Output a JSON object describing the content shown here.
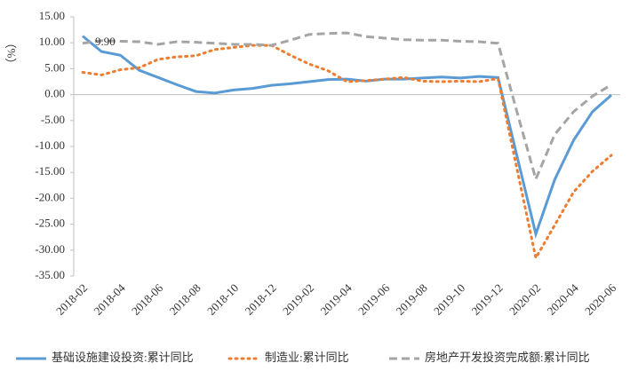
{
  "chart_data": {
    "type": "line",
    "y_label": "（%）",
    "annotation": "9.90",
    "categories": [
      "2018-02",
      null,
      "2018-04",
      null,
      "2018-06",
      null,
      "2018-08",
      null,
      "2018-10",
      null,
      "2018-12",
      null,
      "2019-02",
      null,
      "2019-04",
      null,
      "2019-06",
      null,
      "2019-08",
      null,
      "2019-10",
      null,
      "2019-12",
      null,
      "2020-02",
      null,
      "2020-04",
      null,
      "2020-06"
    ],
    "series": [
      {
        "name": "基础设施建设投资:累计同比",
        "color": "#5b9bd5",
        "dash": "solid",
        "values": [
          11.3,
          8.3,
          7.6,
          4.7,
          3.3,
          1.9,
          0.6,
          0.3,
          0.9,
          1.2,
          1.8,
          2.1,
          2.5,
          2.9,
          3.0,
          2.6,
          3.0,
          3.0,
          3.2,
          3.4,
          3.2,
          3.5,
          3.3,
          -11.8,
          -26.9,
          -16.4,
          -8.8,
          -3.3,
          -0.1
        ]
      },
      {
        "name": "制造业:累计同比",
        "color": "#ed7d31",
        "dash": "dot",
        "values": [
          4.3,
          3.8,
          4.8,
          5.2,
          6.8,
          7.3,
          7.5,
          8.7,
          9.1,
          9.5,
          9.5,
          7.6,
          5.9,
          4.6,
          2.5,
          2.7,
          3.0,
          3.3,
          2.6,
          2.5,
          2.6,
          2.5,
          3.1,
          -14.3,
          -31.5,
          -25.2,
          -18.8,
          -14.8,
          -11.7
        ]
      },
      {
        "name": "房地产开发投资完成额:累计同比",
        "color": "#a5a5a5",
        "dash": "dash",
        "values": [
          9.9,
          10.4,
          10.3,
          10.2,
          9.7,
          10.2,
          10.1,
          9.9,
          9.7,
          9.7,
          9.5,
          10.5,
          11.6,
          11.8,
          11.9,
          11.2,
          10.9,
          10.6,
          10.5,
          10.5,
          10.3,
          10.2,
          9.9,
          -3.3,
          -16.3,
          -7.7,
          -3.3,
          -0.3,
          1.9
        ]
      }
    ],
    "ylim": [
      -35,
      15
    ],
    "yticks": [
      {
        "value": -35,
        "label": "-35.00"
      },
      {
        "value": -30,
        "label": "-30.00"
      },
      {
        "value": -25,
        "label": "-25.00"
      },
      {
        "value": -20,
        "label": "-20.00"
      },
      {
        "value": -15,
        "label": "-15.00"
      },
      {
        "value": -10,
        "label": "-10.00"
      },
      {
        "value": -5,
        "label": "-5.00"
      },
      {
        "value": 0,
        "label": "0.00"
      },
      {
        "value": 5,
        "label": "5.00"
      },
      {
        "value": 10,
        "label": "10.00"
      },
      {
        "value": 15,
        "label": "15.00"
      }
    ],
    "grid": false,
    "legend": "bottom"
  }
}
